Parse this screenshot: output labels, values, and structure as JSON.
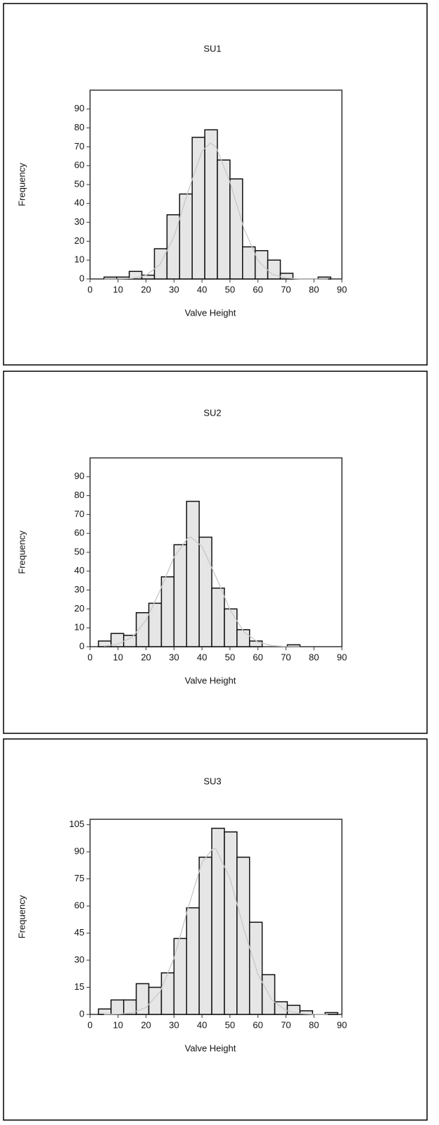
{
  "chart_data": [
    {
      "type": "histogram",
      "title": "SU1",
      "xlabel": "Valve Height",
      "ylabel": "Frequency",
      "bins": [
        5,
        9.5,
        14,
        18.5,
        23,
        27.5,
        32,
        36.5,
        41,
        45.5,
        50,
        54.5,
        59,
        63.5,
        68,
        72.5,
        77,
        81.5,
        86
      ],
      "values": [
        1,
        1,
        4,
        2,
        16,
        34,
        45,
        75,
        79,
        63,
        53,
        17,
        15,
        10,
        3,
        0,
        0,
        1
      ],
      "color": "#e6e6e6",
      "fit": {
        "x": [
          5,
          10,
          15,
          20,
          25,
          30,
          35,
          40,
          43,
          45,
          50,
          55,
          60,
          65,
          70,
          75,
          80,
          85
        ],
        "values": [
          0,
          0.04,
          0.3,
          1.9,
          7.7,
          22.4,
          46.2,
          67.7,
          72,
          70,
          51.3,
          26.6,
          9.7,
          2.5,
          0.5,
          0.06,
          0,
          0
        ],
        "color": "#c8c8c8"
      },
      "xlim": [
        0,
        90
      ],
      "xticks": [
        0,
        10,
        20,
        30,
        40,
        50,
        60,
        70,
        80,
        90
      ],
      "ylim": [
        0,
        100
      ],
      "yticks": [
        0,
        10,
        20,
        30,
        40,
        50,
        60,
        70,
        80,
        90
      ]
    },
    {
      "type": "histogram",
      "title": "SU2",
      "xlabel": "Valve Height",
      "ylabel": "Frequency",
      "bins": [
        3,
        7.5,
        12,
        16.5,
        21,
        25.5,
        30,
        34.5,
        39,
        43.5,
        48,
        52.5,
        57,
        61.5,
        66,
        70.5,
        75
      ],
      "values": [
        3,
        7,
        6,
        18,
        23,
        37,
        54,
        77,
        58,
        31,
        20,
        9,
        3,
        0,
        0,
        1
      ],
      "color": "#e6e6e6",
      "fit": {
        "x": [
          5,
          10,
          15,
          20,
          25,
          30,
          35,
          36,
          40,
          45,
          50,
          55,
          60,
          65,
          70,
          75
        ],
        "values": [
          0.3,
          1.4,
          5,
          14,
          29.7,
          47.5,
          57.7,
          58,
          53.1,
          37,
          19.6,
          7.8,
          2.4,
          0.55,
          0.1,
          0
        ],
        "color": "#c8c8c8"
      },
      "xlim": [
        0,
        90
      ],
      "xticks": [
        0,
        10,
        20,
        30,
        40,
        50,
        60,
        70,
        80,
        90
      ],
      "ylim": [
        0,
        100
      ],
      "yticks": [
        0,
        10,
        20,
        30,
        40,
        50,
        60,
        70,
        80,
        90
      ]
    },
    {
      "type": "histogram",
      "title": "SU3",
      "xlabel": "Valve Height",
      "ylabel": "Frequency",
      "bins": [
        3,
        7.5,
        12,
        16.5,
        21,
        25.5,
        30,
        34.5,
        39,
        43.5,
        48,
        52.5,
        57,
        61.5,
        66,
        70.5,
        75,
        79.5,
        84,
        88.5
      ],
      "values": [
        3,
        8,
        8,
        17,
        15,
        23,
        42,
        59,
        87,
        103,
        101,
        87,
        51,
        22,
        7,
        5,
        2,
        0,
        1
      ],
      "color": "#e6e6e6",
      "fit": {
        "x": [
          5,
          10,
          15,
          20,
          25,
          30,
          35,
          40,
          44,
          45,
          50,
          55,
          60,
          65,
          70,
          75,
          80,
          85
        ],
        "values": [
          0.02,
          0.15,
          0.87,
          3.8,
          12.5,
          31.1,
          58.7,
          84.2,
          92,
          91.5,
          75.3,
          47.1,
          22.2,
          8,
          2.2,
          0.45,
          0.07,
          0
        ],
        "color": "#c8c8c8"
      },
      "xlim": [
        0,
        90
      ],
      "xticks": [
        0,
        10,
        20,
        30,
        40,
        50,
        60,
        70,
        80,
        90
      ],
      "ylim": [
        0,
        108
      ],
      "yticks": [
        0,
        15,
        30,
        45,
        60,
        75,
        90,
        105
      ]
    }
  ]
}
